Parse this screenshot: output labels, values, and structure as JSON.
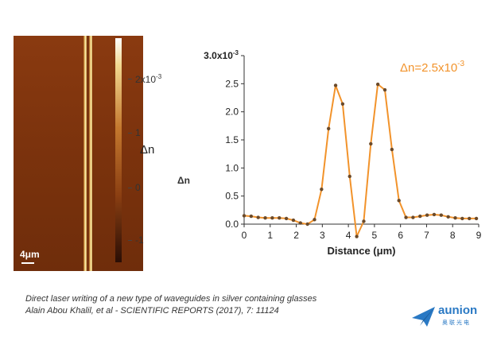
{
  "micrograph": {
    "scale_label": "4μm"
  },
  "colorbar": {
    "title": "Δn",
    "labels": [
      {
        "text": "2x10",
        "exp": "-3",
        "value": 2
      },
      {
        "text": "1",
        "exp": "",
        "value": 1
      },
      {
        "text": "0",
        "exp": "",
        "value": 0
      },
      {
        "text": "-1",
        "exp": "",
        "value": -1
      }
    ]
  },
  "side_label": "Δn",
  "chart_data": {
    "type": "line",
    "xlabel": "Distance (μm)",
    "ylabel": "Δn",
    "xlim": [
      0,
      9
    ],
    "ylim": [
      0,
      3.0
    ],
    "x_ticks": [
      "0",
      "1",
      "2",
      "3",
      "4",
      "5",
      "6",
      "7",
      "8",
      "9"
    ],
    "y_ticks": [
      "0.0",
      "0.5",
      "1.0",
      "1.5",
      "2.0",
      "2.5"
    ],
    "y_top_label": "3.0x10",
    "y_top_exp": "-3",
    "annotation": {
      "text": "Δn=2.5x10",
      "exp": "-3",
      "color": "#f2932b"
    },
    "line_color": "#f2932b",
    "marker_color": "#6b4a2a",
    "grid": false,
    "x": [
      0,
      0.27,
      0.54,
      0.81,
      1.08,
      1.35,
      1.62,
      1.89,
      2.16,
      2.43,
      2.7,
      2.97,
      3.24,
      3.51,
      3.78,
      4.05,
      4.32,
      4.59,
      4.86,
      5.13,
      5.4,
      5.67,
      5.94,
      6.21,
      6.48,
      6.75,
      7.02,
      7.29,
      7.56,
      7.83,
      8.1,
      8.37,
      8.64,
      8.91
    ],
    "y": [
      0.15,
      0.14,
      0.12,
      0.11,
      0.11,
      0.11,
      0.1,
      0.07,
      0.02,
      0.0,
      0.08,
      0.62,
      1.7,
      2.47,
      2.14,
      0.85,
      -0.22,
      0.05,
      1.43,
      2.49,
      2.39,
      1.33,
      0.42,
      0.12,
      0.12,
      0.14,
      0.16,
      0.17,
      0.16,
      0.13,
      0.11,
      0.1,
      0.1,
      0.1
    ]
  },
  "caption": {
    "line1": "Direct laser writing of a new type of waveguides in silver containing glasses",
    "line2": "Alain Abou Khalil, et al - SCIENTIFIC REPORTS (2017), 7: 11124"
  },
  "logo": {
    "name": "aunion",
    "sub": "奥联光电",
    "color": "#2a79c4"
  }
}
